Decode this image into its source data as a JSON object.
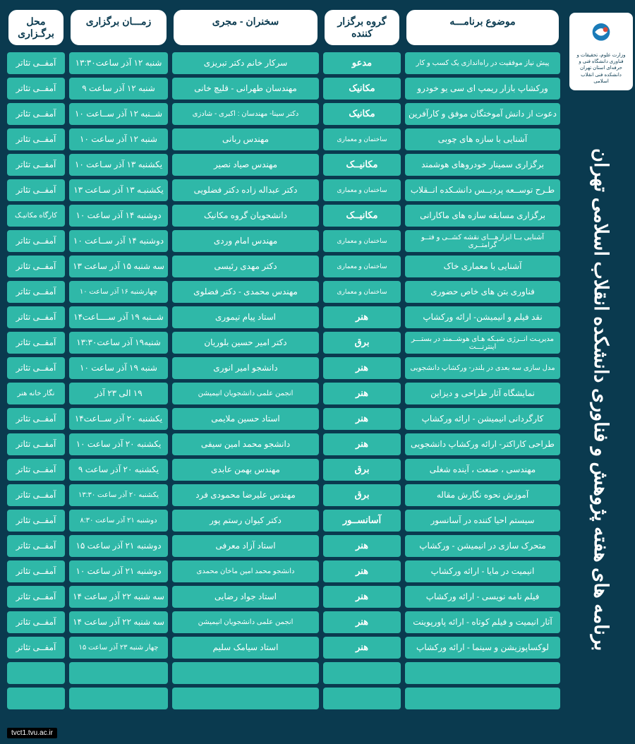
{
  "sidebar": {
    "logo_text": "وزارت علوم، تحقیقات و فناوری\nدانشگاه فنی و حرفه‌ای استان تهران\nدانشکده فنی انقلاب اسلامی",
    "vertical_title": "برنامه های هفته پژوهش و فناوری دانشکده انقلاب اسلامی تهران"
  },
  "headers": {
    "topic": "موضوع برنامـــه",
    "group": "گروه برگزار کننده",
    "speaker": "سخنران - مجری",
    "time": "زمـــان برگزاری",
    "place": "محل برگـزاری"
  },
  "rows": [
    {
      "topic": "پیش نیاز موفقیت در راه‌اندازی یک کسب و کار",
      "group": "مدعو",
      "speaker": "سرکار خانم دکتر تبریزی",
      "time": "شنبه ۱۲ آذر ساعت۱۳:۳۰",
      "place": "آمفــی تئاتر",
      "group_small": false,
      "topic_small": true
    },
    {
      "topic": "ورکشاپ بازار ریمپ ای سی یو خودرو",
      "group": "مکانیک",
      "speaker": "مهندسان طهرانی - قلیچ خانی",
      "time": "شنبه ۱۲ آذر ساعت ۹",
      "place": "آمفــی تئاتر",
      "group_small": false,
      "topic_small": false
    },
    {
      "topic": "دعوت از دانش آموختگان موفق و کارآفرین",
      "group": "مکانیک",
      "speaker": "دکتر سینا- مهندسان : اکبری - شادزی",
      "time": "شــنبه ۱۲ آذر ســاعت ۱۰",
      "place": "آمفــی تئاتر",
      "group_small": false,
      "topic_small": false,
      "speaker_small": true
    },
    {
      "topic": "آشنایی با سازه های چوبی",
      "group": "ساختمان و معماری",
      "speaker": "مهندس ربانی",
      "time": "شنبه ۱۲ آذر ساعت ۱۰",
      "place": "آمفــی تئاتر",
      "group_small": true,
      "topic_small": false
    },
    {
      "topic": "برگزاری سمینار خودروهای هوشمند",
      "group": "مکانیــک",
      "speaker": "مهندس صیاد نصیر",
      "time": "یکشنبه ۱۳ آذر سـاعت ۱۰",
      "place": "آمفــی تئاتر",
      "group_small": false,
      "topic_small": false
    },
    {
      "topic": "طـرح توســعه پردیــس دانشـکده انــقلاب",
      "group": "ساختمان و معماری",
      "speaker": "دکتر عبداله زاده دکتر فضلویی",
      "time": "یکشنبـه ۱۳ آذر سـاعت ۱۳",
      "place": "آمفــی تئاتر",
      "group_small": true,
      "topic_small": false
    },
    {
      "topic": "برگزاری مسابقه سازه های ماکارانی",
      "group": "مکانیــک",
      "speaker": "دانشجویان گروه مکانیک",
      "time": "دوشنبه ۱۴ آذر ساعت ۱۰",
      "place": "کارگاه مکانیـک",
      "group_small": false,
      "topic_small": false,
      "place_small": true
    },
    {
      "topic": "آشنایی بــا ابزارهـــای نقشه کشــی و فتــو گرامتــری",
      "group": "ساختمان و معماری",
      "speaker": "مهندس امام وردی",
      "time": "دوشنبه ۱۴ آذر ســاعت ۱۰",
      "place": "آمفــی تئاتر",
      "group_small": true,
      "topic_small": true
    },
    {
      "topic": "آشنایی با معماری خاک",
      "group": "ساختمان و معماری",
      "speaker": "دکتر مهدی رئیسی",
      "time": "سه شنبه ۱۵ آذر ساعت ۱۳",
      "place": "آمفــی تئاتر",
      "group_small": true,
      "topic_small": false
    },
    {
      "topic": "فناوری بتن های خاص حضوری",
      "group": "ساختمان و معماری",
      "speaker": "مهندس محمدی - دکتر فضلوی",
      "time": "چهارشنبه ۱۶ آذر ساعت ۱۰",
      "place": "آمفــی تئاتر",
      "group_small": true,
      "topic_small": false,
      "time_small": true
    },
    {
      "topic": "نقد فیلم و انیمیشن- ارائه ورکشاپ",
      "group": "هنر",
      "speaker": "استاد پیام تیموری",
      "time": "شــنبه ۱۹ آذر ســــاعت۱۴",
      "place": "آمفــی تئاتر",
      "group_small": false,
      "topic_small": false
    },
    {
      "topic": "مدیریـت انــرژی شبـکه هـای هوشــمند در بستـــر اینترنـــت",
      "group": "برق",
      "speaker": "دکتر امیر حسین بلوریان",
      "time": "شنبه۱۹ آذر ساعت۱۳:۳۰",
      "place": "آمفــی تئاتر",
      "group_small": false,
      "topic_small": true
    },
    {
      "topic": "مدل سازی سه بعدی در بلندر- ورکشاپ دانشجویی",
      "group": "هنر",
      "speaker": "دانشجو امیر انوری",
      "time": "شنبه ۱۹ آذر ساعت ۱۰",
      "place": "آمفــی تئاتر",
      "group_small": false,
      "topic_small": true
    },
    {
      "topic": "نمایشگاه آثار طراحی و دیزاین",
      "group": "هنر",
      "speaker": "انجمن علمی دانشجویان انیمیشن",
      "time": "۱۹ الی ۲۳  آذر",
      "place": "نگار خانه هنر",
      "group_small": false,
      "topic_small": false,
      "speaker_small": true,
      "place_small": true
    },
    {
      "topic": "کارگردانی انیمیشن - ارائه ورکشاپ",
      "group": "هنر",
      "speaker": "استاد حسین ملایمی",
      "time": "یکشنبه ۲۰ آذر ســاعت۱۴",
      "place": "آمفــی تئاتر",
      "group_small": false,
      "topic_small": false
    },
    {
      "topic": "طراحی کاراکتر- ارائه  ورکشاپ دانشجویی",
      "group": "هنر",
      "speaker": "دانشجو محمد امین سیفی",
      "time": "یکشنبه ۲۰ آذر ساعت ۱۰",
      "place": "آمفــی تئاتر",
      "group_small": false,
      "topic_small": false
    },
    {
      "topic": "مهندسی ، صنعت ، آینده شغلی",
      "group": "برق",
      "speaker": "مهندس بهمن عابدی",
      "time": "یکشنبه ۲۰ آذر ساعت ۹",
      "place": "آمفــی تئاتر",
      "group_small": false,
      "topic_small": false
    },
    {
      "topic": "آموزش نحوه نگارش مقاله",
      "group": "برق",
      "speaker": "مهندس علیرضا محمودی فرد",
      "time": "یکشنبه ۲۰ آذر ساعت ۱۳:۳۰",
      "place": "آمفــی تئاتر",
      "group_small": false,
      "topic_small": false,
      "time_small": true
    },
    {
      "topic": "سیستم احیا کننده در آسانسور",
      "group": "آسانســور",
      "speaker": "دکتر کیوان رستم پور",
      "time": "دوشنبه ۲۱ آذر ساعت ۸:۳۰",
      "place": "آمفــی تئاتر",
      "group_small": false,
      "topic_small": false,
      "time_small": true
    },
    {
      "topic": "متحرک سازی در انیمیشن - ورکشاپ",
      "group": "هنر",
      "speaker": "استاد  آزاد معرفی",
      "time": "دوشنبه ۲۱ آذر ساعت ۱۵",
      "place": "آمفــی تئاتر",
      "group_small": false,
      "topic_small": false
    },
    {
      "topic": "انیمیت در مایا - ارائه ورکشاپ",
      "group": "هنر",
      "speaker": "دانشجو محمد امین ماخان محمدی",
      "time": "دوشنبه ۲۱ آذر ساعت ۱۰",
      "place": "آمفــی تئاتر",
      "group_small": false,
      "topic_small": false,
      "speaker_small": true
    },
    {
      "topic": "فیلم نامه نویسی - ارائه ورکشاپ",
      "group": "هنر",
      "speaker": "استاد جواد رضایی",
      "time": "سه شنبه ۲۲ آذر ساعت ۱۴",
      "place": "آمفــی تئاتر",
      "group_small": false,
      "topic_small": false
    },
    {
      "topic": "آثار انیمیت و فیلم کوتاه - ارائه پاورپوینت",
      "group": "هنر",
      "speaker": "انجمن علمی دانشجویان انیمیشن",
      "time": "سه شنبه ۲۲ آذر ساعت ۱۴",
      "place": "آمفــی تئاتر",
      "group_small": false,
      "topic_small": false,
      "speaker_small": true
    },
    {
      "topic": "لوکساپوزیشن و سینما - ارائه ورکشاپ",
      "group": "هنر",
      "speaker": "استاد سیامک سلیم",
      "time": "چهار شنبه ۲۳ آذر ساعت ۱۵",
      "place": "آمفــی تئاتر",
      "group_small": false,
      "topic_small": false,
      "time_small": true
    }
  ],
  "footer_link": "tvct1.tvu.ac.ir",
  "colors": {
    "bg": "#0a3a4f",
    "cell": "#2fb8a8",
    "header_bg": "#ffffff",
    "text_white": "#ffffff"
  }
}
